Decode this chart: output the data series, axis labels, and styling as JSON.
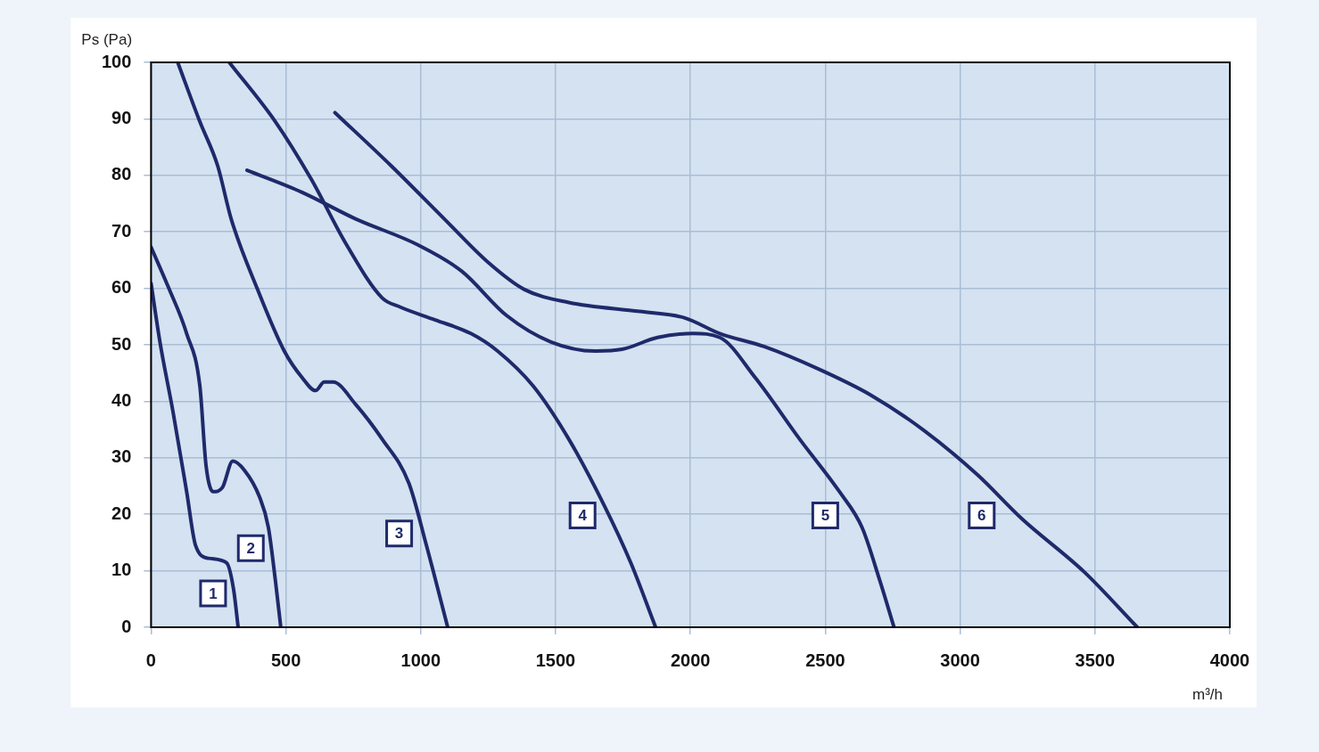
{
  "chart_data": {
    "type": "line",
    "xlabel": "m³/h",
    "ylabel": "Ps (Pa)",
    "xlim": [
      0,
      4000
    ],
    "xticks": [
      0,
      500,
      1000,
      1500,
      2000,
      2500,
      3000,
      3500,
      4000
    ],
    "ylim": [
      0,
      100
    ],
    "yticks": [
      0,
      10,
      20,
      30,
      40,
      50,
      60,
      70,
      80,
      90,
      100
    ],
    "grid": true,
    "legend": false,
    "series": [
      {
        "color": "#1f2a6b",
        "x": [
          0,
          33,
          82,
          132,
          165,
          214,
          280,
          306,
          323
        ],
        "values": [
          60.9,
          50.5,
          38,
          24,
          14.5,
          12.2,
          11.4,
          6.7,
          0
        ]
      },
      {
        "color": "#1f2a6b",
        "x": [
          0,
          66,
          132,
          181,
          204,
          231,
          264,
          303,
          346,
          402,
          435,
          461,
          481
        ],
        "values": [
          67.3,
          60,
          52,
          42.7,
          28.6,
          24,
          24.7,
          29.4,
          27.8,
          23.1,
          17.7,
          8.3,
          0
        ]
      },
      {
        "color": "#1f2a6b",
        "x": [
          99,
          181,
          247,
          297,
          395,
          494,
          560,
          610,
          642,
          675,
          758,
          857,
          956,
          1021,
          1100
        ],
        "values": [
          100,
          89.5,
          81.7,
          72.3,
          59.8,
          48.9,
          44.2,
          41.9,
          43.4,
          43.4,
          39.5,
          33.3,
          25.5,
          14.5,
          0
        ]
      },
      {
        "color": "#1f2a6b",
        "x": [
          290,
          461,
          593,
          725,
          857,
          923,
          1054,
          1186,
          1285,
          1417,
          1549,
          1680,
          1779,
          1871
        ],
        "values": [
          100,
          89.5,
          79.4,
          67.7,
          58.3,
          56.7,
          54.4,
          52,
          48.9,
          42.7,
          33.3,
          21.6,
          11.4,
          0
        ]
      },
      {
        "color": "#1f2a6b",
        "x": [
          356,
          560,
          758,
          989,
          1153,
          1318,
          1483,
          1647,
          1746,
          1878,
          2010,
          2109,
          2240,
          2405,
          2554,
          2636,
          2702,
          2755
        ],
        "values": [
          80.9,
          77,
          72.3,
          67.7,
          63,
          55.2,
          50.5,
          48.9,
          49.2,
          51.3,
          52,
          51.3,
          44.2,
          33.3,
          23.9,
          17.7,
          8.3,
          0
        ]
      },
      {
        "color": "#1f2a6b",
        "x": [
          682,
          890,
          1087,
          1252,
          1384,
          1549,
          1812,
          1977,
          2109,
          2273,
          2471,
          2669,
          2867,
          3064,
          3229,
          3460,
          3657
        ],
        "values": [
          91.1,
          81.7,
          72.3,
          64.5,
          59.8,
          57.5,
          55.9,
          54.8,
          52,
          49.7,
          45.8,
          41.1,
          34.8,
          27,
          19.2,
          9.8,
          0
        ]
      }
    ],
    "annotations": [
      {
        "text": "1",
        "x": 230,
        "y": 6
      },
      {
        "text": "2",
        "x": 370,
        "y": 14
      },
      {
        "text": "3",
        "x": 920,
        "y": 16.6
      },
      {
        "text": "4",
        "x": 1600,
        "y": 19.8
      },
      {
        "text": "5",
        "x": 2500,
        "y": 19.8
      },
      {
        "text": "6",
        "x": 3080,
        "y": 19.8
      }
    ]
  }
}
